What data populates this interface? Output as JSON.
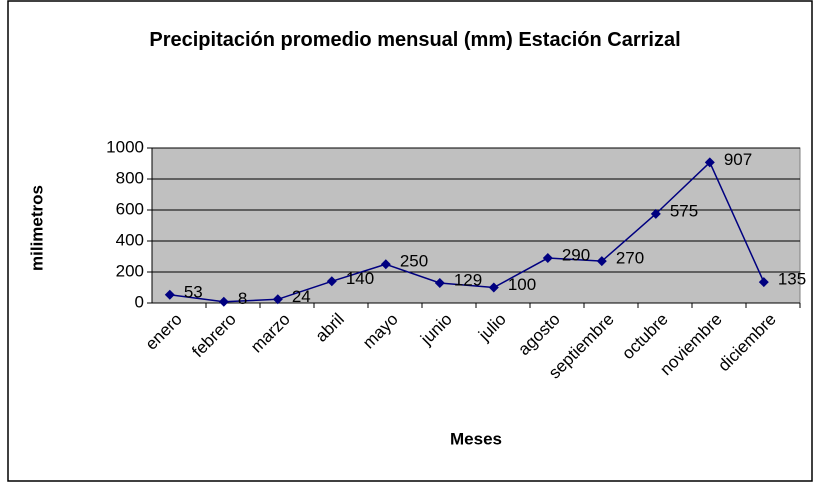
{
  "chart_data": {
    "type": "line",
    "title": "Precipitación promedio mensual (mm) Estación Carrizal",
    "xlabel": "Meses",
    "ylabel": "milimetros",
    "categories": [
      "enero",
      "febrero",
      "marzo",
      "abril",
      "mayo",
      "junio",
      "julio",
      "agosto",
      "septiembre",
      "octubre",
      "noviembre",
      "diciembre"
    ],
    "series": [
      {
        "name": "Precipitación",
        "color": "#000080",
        "values": [
          53,
          8,
          24,
          140,
          250,
          129,
          100,
          290,
          270,
          575,
          907,
          135
        ]
      }
    ],
    "ylim": [
      0,
      1000
    ],
    "yticks": [
      0,
      200,
      400,
      600,
      800,
      1000
    ],
    "grid": true,
    "plot_background": "#c0c0c0"
  }
}
